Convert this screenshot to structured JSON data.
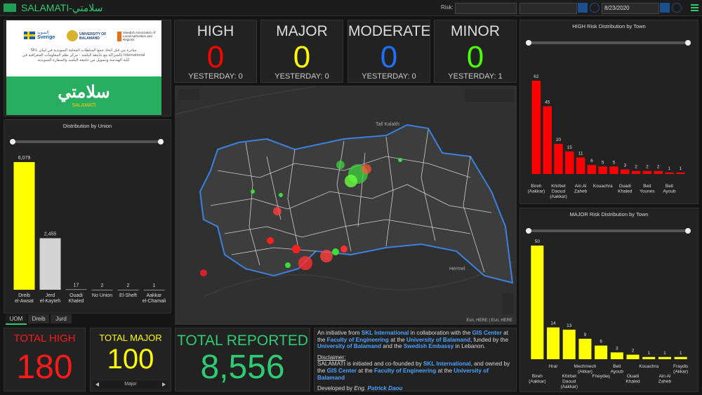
{
  "header": {
    "title": "SALAMATI-سلامتي",
    "risk_label": "Risk:",
    "date": "8/23/2020"
  },
  "logo": {
    "sweden": "Sverige",
    "sweden_ar": "السويد",
    "university": "UNIVERSITY OF BALAMAND",
    "association": "Swedish Association of Local Authorities and Regions",
    "blurb_ar": "مبادرة من قبل اتحاد جمع السلطات المحلية السويدية في لبنان SKL International بالشراكة مع جامعة البلمند - مركز نظم المعلومات الجغرافية في كلية الهندسة وبتمويل من جامعة البلمند والسفارة السويدية",
    "app_ar": "سلامتي",
    "app": "SALAMATI"
  },
  "indicators": [
    {
      "label": "HIGH",
      "value": 0,
      "yesterday": "YESTERDAY: 0",
      "color": "#ff0000"
    },
    {
      "label": "MAJOR",
      "value": 0,
      "yesterday": "YESTERDAY: 0",
      "color": "#ffff00"
    },
    {
      "label": "MODERATE",
      "value": 0,
      "yesterday": "YESTERDAY: 0",
      "color": "#1e6fff"
    },
    {
      "label": "MINOR",
      "value": 0,
      "yesterday": "YESTERDAY: 1",
      "color": "#4cff00"
    }
  ],
  "map": {
    "labels": [
      "Tall Kalakh",
      "Hermel"
    ],
    "attribution": "Esri, HERE | Esri, HERE"
  },
  "union_chart": {
    "type": "bar",
    "title": "Distribution by Union",
    "categories": [
      "Dreib el-Awsat",
      "Jerd el-Kayteh",
      "Ouadi Khaled",
      "No Union",
      "El-Sheft",
      "Aakkar el-Chamali"
    ],
    "values": [
      6079,
      2455,
      17,
      2,
      2,
      1
    ],
    "value_labels": [
      "6,079",
      "2,455",
      "17",
      "2",
      "2",
      "1"
    ],
    "colors": [
      "#ffff00",
      "#d3d3d3",
      "#d3d3d3",
      "#d3d3d3",
      "#d3d3d3",
      "#d3d3d3"
    ]
  },
  "union_tabs": [
    "UOM",
    "Dreib",
    "Jurd"
  ],
  "high_chart": {
    "type": "bar",
    "title": "HIGH Risk Distribution by Town",
    "color": "#ff0000",
    "categories": [
      "Bireh (Aakkar)",
      null,
      "Khirbet Daoud (Aakkar)",
      null,
      "Ain Al Zaheb",
      null,
      "Kouachra",
      null,
      "Ouadi Khaled",
      null,
      "Beit Younes",
      null,
      "Beit Ayoub",
      null
    ],
    "values": [
      62,
      45,
      20,
      15,
      11,
      6,
      5,
      5,
      3,
      2,
      2,
      2,
      1,
      1
    ]
  },
  "major_chart": {
    "type": "bar",
    "title": "MAJOR Risk Distribution by Town",
    "color": "#ffff00",
    "categories": [
      "Bireh (Aakkar)",
      "Hrar",
      "Khirbet Daoud (Aakkar)",
      "Mechmech (Akkar)",
      "Fneydeq",
      "Beit Ayoub",
      "Ouadi Khaled",
      "Kouachra",
      "Ain Al Zaheb",
      "Fraydis (Akkar)"
    ],
    "values": [
      50,
      14,
      13,
      9,
      6,
      3,
      2,
      1,
      1,
      1
    ]
  },
  "totals": [
    {
      "label": "TOTAL HIGH",
      "value": "180",
      "color": "#ff1a1a"
    },
    {
      "label": "TOTAL MAJOR",
      "value": "100",
      "color": "#ffff00",
      "page": "Major"
    },
    {
      "label": "TOTAL REPORTED",
      "value": "8,556",
      "color": "#2ecc71"
    }
  ],
  "info": {
    "paragraphs": [
      [
        {
          "text": "An initiative from "
        },
        {
          "text": "SKL International",
          "style": "link"
        },
        {
          "text": " in collaboration with the "
        },
        {
          "text": "GIS Center",
          "style": "link"
        },
        {
          "text": " at the "
        },
        {
          "text": "Faculty of Engineering",
          "style": "link"
        },
        {
          "text": " at the "
        },
        {
          "text": "University of Balamand",
          "style": "link"
        },
        {
          "text": ", funded by the "
        },
        {
          "text": "University of Balamand",
          "style": "link"
        },
        {
          "text": " and the "
        },
        {
          "text": "Swedish Embassy",
          "style": "link"
        },
        {
          "text": " in Lebanon."
        }
      ],
      [
        {
          "text": "Disclaimer:",
          "style": "underline"
        }
      ],
      [
        {
          "text": "SALAMATI is initiated and co-founded by "
        },
        {
          "text": "SKL International",
          "style": "link"
        },
        {
          "text": ", and owned by the "
        },
        {
          "text": "GIS Center",
          "style": "link"
        },
        {
          "text": " at the "
        },
        {
          "text": "Faculty of Engineering",
          "style": "link"
        },
        {
          "text": " at the "
        },
        {
          "text": "University of Balamand",
          "style": "link"
        }
      ],
      [
        {
          "text": "Developed by "
        },
        {
          "text": "Eng. ",
          "style": "italic"
        },
        {
          "text": "Patrick Daou",
          "style": "link-italic"
        }
      ]
    ]
  }
}
